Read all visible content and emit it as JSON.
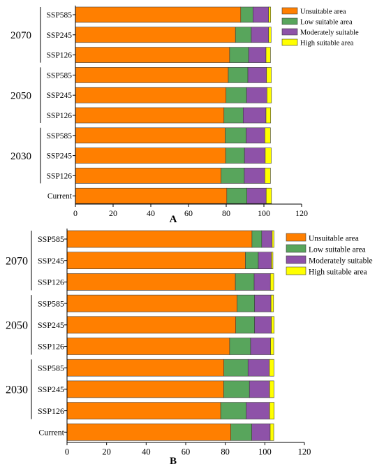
{
  "chart_data": [
    {
      "panel_label": "A",
      "type": "bar",
      "orientation": "horizontal",
      "stacked": true,
      "xlim": [
        0,
        120
      ],
      "xticks": [
        0,
        20,
        40,
        60,
        80,
        100,
        120
      ],
      "groups": [
        {
          "name": "2070",
          "rows": [
            "SSP585",
            "SSP245",
            "SSP126"
          ]
        },
        {
          "name": "2050",
          "rows": [
            "SSP585",
            "SSP245",
            "SSP126"
          ]
        },
        {
          "name": "2030",
          "rows": [
            "SSP585",
            "SSP245",
            "SSP126"
          ]
        },
        {
          "name": "",
          "rows": [
            "Current"
          ]
        }
      ],
      "categories": [
        "SSP585",
        "SSP245",
        "SSP126",
        "SSP585",
        "SSP245",
        "SSP126",
        "SSP585",
        "SSP245",
        "SSP126",
        "Current"
      ],
      "series": [
        {
          "name": "Unsuitable area",
          "color": "#FF7F00",
          "values": [
            87.7,
            84.9,
            81.8,
            81.1,
            79.9,
            78.8,
            79.5,
            79.7,
            77.3,
            80.3
          ]
        },
        {
          "name": "Low suitable area",
          "color": "#58A55C",
          "values": [
            6.5,
            8.4,
            10.1,
            10.4,
            10.9,
            10.2,
            11.1,
            10.0,
            12.3,
            10.7
          ]
        },
        {
          "name": "Moderately suitable",
          "color": "#8E52A8",
          "values": [
            8.3,
            9.2,
            9.2,
            9.9,
            10.8,
            12.1,
            9.9,
            11.0,
            10.9,
            10.2
          ]
        },
        {
          "name": "High suitable area",
          "color": "#FFFF00",
          "values": [
            1.1,
            1.3,
            2.4,
            2.5,
            2.4,
            2.5,
            3.0,
            3.2,
            3.0,
            2.8
          ]
        }
      ],
      "legend_position": "top-right"
    },
    {
      "panel_label": "B",
      "type": "bar",
      "orientation": "horizontal",
      "stacked": true,
      "xlim": [
        0,
        120
      ],
      "xticks": [
        0,
        20,
        40,
        60,
        80,
        100,
        120
      ],
      "groups": [
        {
          "name": "2070",
          "rows": [
            "SSP585",
            "SSP245",
            "SSP126"
          ]
        },
        {
          "name": "2050",
          "rows": [
            "SSP585",
            "SSP245",
            "SSP126"
          ]
        },
        {
          "name": "2030",
          "rows": [
            "SSP585",
            "SSP245",
            "SSP126"
          ]
        },
        {
          "name": "",
          "rows": [
            "Current"
          ]
        }
      ],
      "categories": [
        "SSP585",
        "SSP245",
        "SSP126",
        "SSP585",
        "SSP245",
        "SSP126",
        "SSP585",
        "SSP245",
        "SSP126",
        "Current"
      ],
      "series": [
        {
          "name": "Unsuitable area",
          "color": "#FF7F00",
          "values": [
            93.5,
            90.2,
            85.1,
            86.0,
            85.3,
            82.2,
            79.3,
            79.2,
            77.7,
            82.8
          ]
        },
        {
          "name": "Low suitable area",
          "color": "#58A55C",
          "values": [
            4.9,
            6.5,
            9.5,
            8.8,
            9.5,
            10.6,
            12.2,
            13.0,
            12.9,
            10.6
          ]
        },
        {
          "name": "Moderately suitable",
          "color": "#8E52A8",
          "values": [
            5.3,
            6.6,
            8.2,
            8.3,
            8.5,
            10.1,
            10.8,
            10.2,
            11.8,
            9.3
          ]
        },
        {
          "name": "High suitable area",
          "color": "#FFFF00",
          "values": [
            0.9,
            0.8,
            1.7,
            1.3,
            1.4,
            1.6,
            2.3,
            2.2,
            2.3,
            1.8
          ]
        }
      ],
      "legend_position": "top-right"
    }
  ]
}
